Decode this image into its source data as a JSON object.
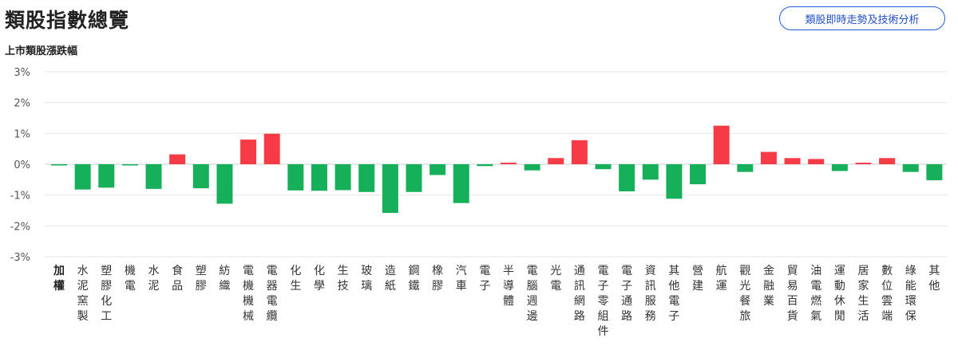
{
  "header": {
    "title": "類股指數總覽",
    "subtitle": "上市類股漲跌幅",
    "trend_button": "類股即時走勢及技術分析"
  },
  "colors": {
    "up": "#f73b46",
    "down": "#17b05a",
    "grid": "#e6e6e6",
    "zero": "#cfcfcf",
    "button": "#1f5dde"
  },
  "chart_data": {
    "type": "bar",
    "title": "上市類股漲跌幅",
    "ylabel": "",
    "xlabel": "",
    "ylim": [
      -3,
      3
    ],
    "yticks": [
      {
        "v": 3,
        "label": "3%"
      },
      {
        "v": 2,
        "label": "2%"
      },
      {
        "v": 1,
        "label": "1%"
      },
      {
        "v": 0,
        "label": "0%"
      },
      {
        "v": -1,
        "label": "-1%"
      },
      {
        "v": -2,
        "label": "-2%"
      },
      {
        "v": -3,
        "label": "-3%"
      }
    ],
    "categories": [
      "加權",
      "水泥窯製",
      "塑膠化工",
      "機電",
      "水泥",
      "食品",
      "塑膠",
      "紡織",
      "電機機械",
      "電器電纜",
      "化生",
      "化學",
      "生技",
      "玻璃",
      "造紙",
      "鋼鐵",
      "橡膠",
      "汽車",
      "電子",
      "半導體",
      "電腦週邊",
      "光電",
      "通訊網路",
      "電子零組件",
      "電子通路",
      "資訊服務",
      "其他電子",
      "營建",
      "航運",
      "觀光餐旅",
      "金融業",
      "貿易百貨",
      "油電燃氣",
      "運動休閒",
      "居家生活",
      "數位雲端",
      "綠能環保",
      "其他"
    ],
    "values": [
      -0.04,
      -0.82,
      -0.76,
      -0.04,
      -0.8,
      0.32,
      -0.78,
      -1.28,
      0.8,
      0.99,
      -0.85,
      -0.86,
      -0.84,
      -0.9,
      -1.58,
      -0.9,
      -0.35,
      -1.26,
      -0.06,
      0.05,
      -0.2,
      0.2,
      0.78,
      -0.16,
      -0.88,
      -0.5,
      -1.12,
      -0.65,
      1.25,
      -0.25,
      0.4,
      0.2,
      0.17,
      -0.22,
      0.05,
      0.2,
      -0.25,
      -0.52
    ]
  }
}
